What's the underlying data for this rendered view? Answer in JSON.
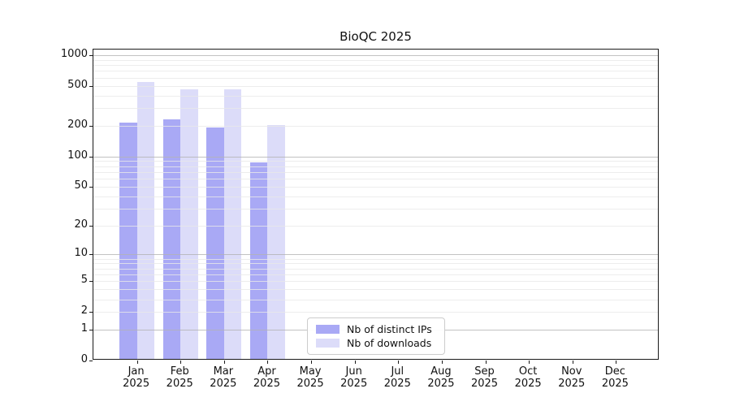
{
  "chart_data": {
    "type": "bar",
    "title": "BioQC 2025",
    "categories": [
      "Jan 2025",
      "Feb 2025",
      "Mar 2025",
      "Apr 2025",
      "May 2025",
      "Jun 2025",
      "Jul 2025",
      "Aug 2025",
      "Sep 2025",
      "Oct 2025",
      "Nov 2025",
      "Dec 2025"
    ],
    "month_abbrs": [
      "Jan",
      "Feb",
      "Mar",
      "Apr",
      "May",
      "Jun",
      "Jul",
      "Aug",
      "Sep",
      "Oct",
      "Nov",
      "Dec"
    ],
    "year_label": "2025",
    "series": [
      {
        "name": "Nb of distinct IPs",
        "color": "#a9a9f5",
        "values": [
          207,
          226,
          188,
          84,
          null,
          null,
          null,
          null,
          null,
          null,
          null,
          null
        ]
      },
      {
        "name": "Nb of downloads",
        "color": "#dcdcf9",
        "values": [
          523,
          445,
          445,
          199,
          null,
          null,
          null,
          null,
          null,
          null,
          null,
          null
        ]
      }
    ],
    "yscale": "log1p",
    "yticks": [
      0,
      1,
      2,
      5,
      10,
      20,
      50,
      100,
      200,
      500,
      1000
    ],
    "ylim": [
      0,
      1130
    ],
    "xlabel": "",
    "ylabel": "",
    "grid": "horizontal, minor lines per decade, major at powers of 10",
    "legend_position": "lower center inside plot"
  }
}
